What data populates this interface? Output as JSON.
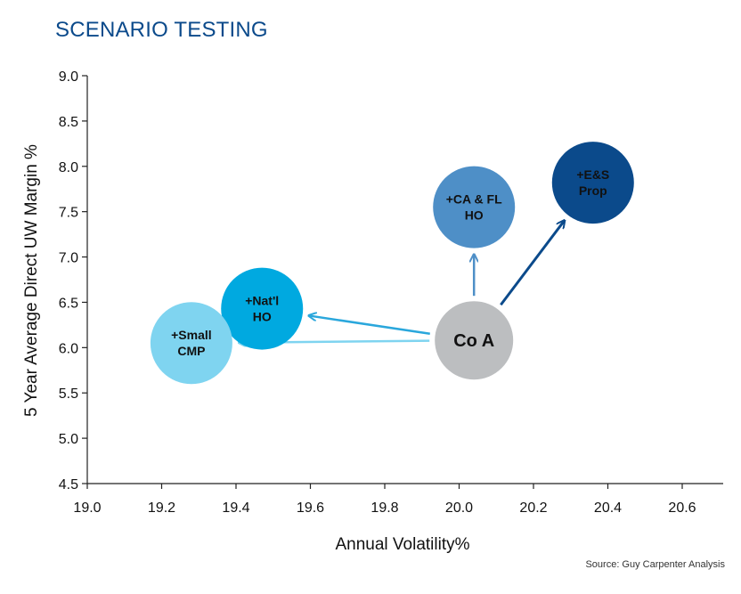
{
  "title": "SCENARIO TESTING",
  "source": "Source: Guy Carpenter Analysis",
  "colors": {
    "title": "#0b4a8b",
    "axis": "#222222",
    "arrow_light": "#2aa7dc",
    "arrow_dark": "#0b4a8b",
    "arrow_mid": "#4e8fc7"
  },
  "chart_data": {
    "type": "scatter",
    "xlabel": "Annual Volatility%",
    "ylabel": "5 Year Average Direct UW Margin %",
    "xlim": [
      19.0,
      20.7
    ],
    "ylim": [
      4.5,
      9.0
    ],
    "xticks": [
      "19.0",
      "19.2",
      "19.4",
      "19.6",
      "19.8",
      "20.0",
      "20.2",
      "20.4",
      "20.6"
    ],
    "yticks": [
      "4.5",
      "5.0",
      "5.5",
      "6.0",
      "6.5",
      "7.0",
      "7.5",
      "8.0",
      "8.5",
      "9.0"
    ],
    "grid": false,
    "points": [
      {
        "lines": [
          "Co A"
        ],
        "x": 20.04,
        "y": 6.08,
        "color": "#bcbec0",
        "label_color": "#111111",
        "size": "large"
      },
      {
        "lines": [
          "+Nat'l",
          "HO"
        ],
        "x": 19.47,
        "y": 6.43,
        "color": "#00a9e0",
        "label_color": "#111111",
        "size": "normal"
      },
      {
        "lines": [
          "+Small",
          "CMP"
        ],
        "x": 19.28,
        "y": 6.05,
        "color": "#7fd4f0",
        "label_color": "#111111",
        "size": "normal"
      },
      {
        "lines": [
          "+CA & FL",
          "HO"
        ],
        "x": 20.04,
        "y": 7.55,
        "color": "#4e8fc7",
        "label_color": "#ffffff",
        "size": "normal"
      },
      {
        "lines": [
          "+E&S",
          "Prop"
        ],
        "x": 20.36,
        "y": 7.82,
        "color": "#0b4a8b",
        "label_color": "#ffffff",
        "size": "normal"
      }
    ],
    "arrows": [
      {
        "from": 0,
        "to": 1,
        "color": "#2aa7dc"
      },
      {
        "from": 0,
        "to": 2,
        "color": "#7fd4f0"
      },
      {
        "from": 0,
        "to": 3,
        "color": "#4e8fc7"
      },
      {
        "from": 0,
        "to": 4,
        "color": "#0b4a8b"
      }
    ]
  }
}
